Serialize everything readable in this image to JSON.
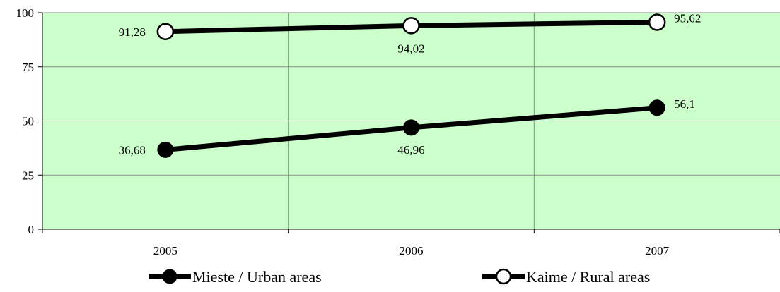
{
  "chart_data": {
    "type": "line",
    "title": "",
    "xlabel": "",
    "ylabel": "",
    "categories": [
      "2005",
      "2006",
      "2007"
    ],
    "ylim": [
      0,
      100
    ],
    "yticks": [
      0,
      25,
      50,
      75,
      100
    ],
    "grid": true,
    "legend_position": "bottom",
    "plot_background": "#ccffcc",
    "series": [
      {
        "name": "Mieste / Urban areas",
        "values": [
          36.68,
          46.96,
          56.1
        ],
        "labels": [
          "36,68",
          "46,96",
          "56,1"
        ],
        "marker": "filled-circle",
        "color": "#000000"
      },
      {
        "name": "Kaime / Rural areas",
        "values": [
          91.28,
          94.02,
          95.62
        ],
        "labels": [
          "91,28",
          "94,02",
          "95,62"
        ],
        "marker": "hollow-circle",
        "color": "#000000"
      }
    ]
  }
}
